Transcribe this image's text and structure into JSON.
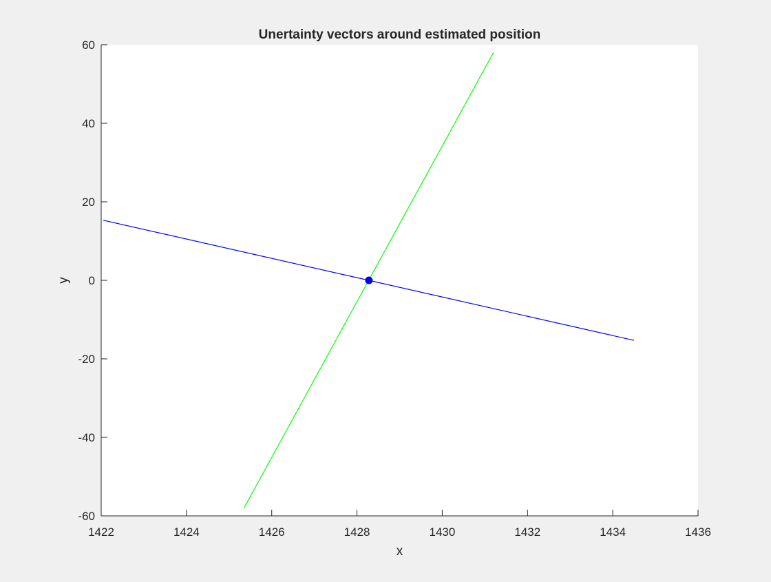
{
  "colors": {
    "figure_background": "#f0f0f0",
    "axes_background": "#ffffff",
    "axis_color": "#262626"
  },
  "chart_data": {
    "type": "line",
    "title": "Unertainty vectors around estimated position",
    "xlabel": "x",
    "ylabel": "y",
    "xlim": [
      1422,
      1436
    ],
    "ylim": [
      -60,
      60
    ],
    "xticks": [
      1422,
      1424,
      1426,
      1428,
      1430,
      1432,
      1434,
      1436
    ],
    "yticks": [
      -60,
      -40,
      -20,
      0,
      20,
      40,
      60
    ],
    "grid": false,
    "legend": "none",
    "series": [
      {
        "type": "line",
        "color": "#0000ff",
        "x": [
          1422.05,
          1434.5
        ],
        "y": [
          15.3,
          -15.3
        ]
      },
      {
        "type": "line",
        "color": "#00ff00",
        "x": [
          1425.35,
          1431.2
        ],
        "y": [
          -58,
          58
        ]
      },
      {
        "type": "point",
        "color": "#0000ff",
        "x": [
          1428.28
        ],
        "y": [
          0
        ]
      }
    ]
  }
}
